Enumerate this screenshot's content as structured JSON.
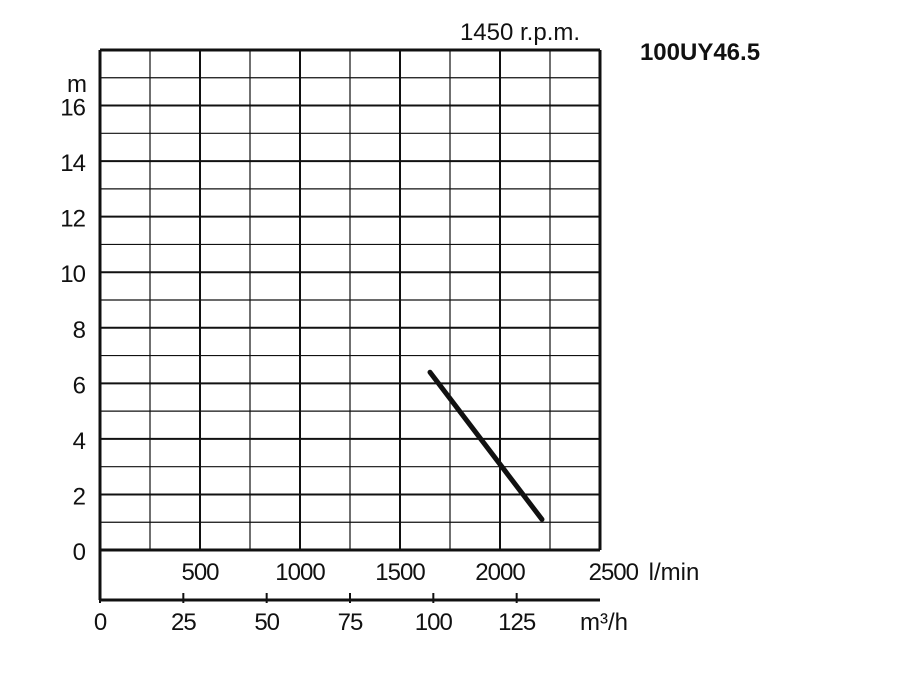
{
  "chart_data": {
    "type": "line",
    "model": "100UY46.5",
    "speed": "1450 r.p.m.",
    "ylabel": "m",
    "ylim": [
      0,
      18
    ],
    "yticks": [
      0,
      2,
      4,
      6,
      8,
      10,
      12,
      14,
      16
    ],
    "flow_lmin": {
      "unit": "l/min",
      "lim": [
        0,
        2500
      ],
      "ticks": [
        500,
        1000,
        1500,
        2000,
        2500
      ]
    },
    "flow_m3h": {
      "unit": "m³/h",
      "lim": [
        0,
        150
      ],
      "ticks": [
        0,
        25,
        50,
        75,
        100,
        125
      ]
    },
    "grid": true,
    "series": [
      {
        "x": [
          1650,
          2210
        ],
        "y": [
          6.4,
          1.1
        ]
      }
    ]
  }
}
